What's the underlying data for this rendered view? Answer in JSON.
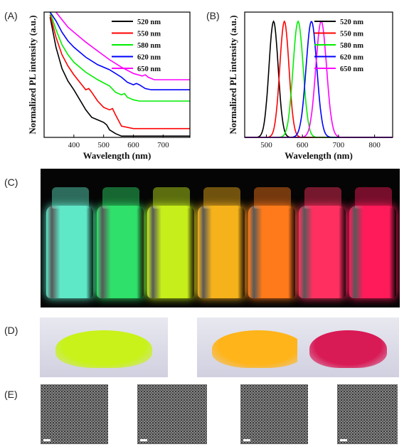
{
  "panels": {
    "a_label": "(A)",
    "b_label": "(B)",
    "c_label": "(C)",
    "d_label": "(D)",
    "e_label": "(E)"
  },
  "chart_data": [
    {
      "type": "line",
      "panel": "(A)",
      "xlabel": "Wavelength (nm)",
      "ylabel": "Normalized PL intensity (a.u.)",
      "xlim": [
        300,
        790
      ],
      "ylim": [
        0,
        1
      ],
      "xticks": [
        400,
        500,
        600,
        700
      ],
      "legend_position": "top-right",
      "series": [
        {
          "name": "520 nm",
          "color": "#000000",
          "x": [
            320,
            340,
            360,
            380,
            400,
            420,
            440,
            460,
            480,
            500,
            510,
            520,
            540,
            560,
            600,
            700,
            790
          ],
          "y": [
            0.96,
            0.72,
            0.55,
            0.45,
            0.38,
            0.3,
            0.22,
            0.16,
            0.14,
            0.12,
            0.1,
            0.06,
            0.03,
            0.01,
            0.01,
            0.01,
            0.01
          ]
        },
        {
          "name": "550 nm",
          "color": "#ff0000",
          "x": [
            320,
            340,
            360,
            380,
            400,
            420,
            440,
            450,
            460,
            480,
            500,
            520,
            530,
            540,
            560,
            600,
            700,
            790
          ],
          "y": [
            0.98,
            0.8,
            0.66,
            0.57,
            0.5,
            0.44,
            0.38,
            0.39,
            0.36,
            0.29,
            0.24,
            0.22,
            0.23,
            0.18,
            0.09,
            0.07,
            0.07,
            0.07
          ]
        },
        {
          "name": "580 nm",
          "color": "#00ee00",
          "x": [
            320,
            340,
            360,
            380,
            400,
            440,
            480,
            520,
            540,
            560,
            570,
            580,
            600,
            620,
            700,
            790
          ],
          "y": [
            1.0,
            0.86,
            0.74,
            0.66,
            0.6,
            0.52,
            0.46,
            0.41,
            0.36,
            0.34,
            0.35,
            0.32,
            0.3,
            0.29,
            0.29,
            0.29
          ]
        },
        {
          "name": "620 nm",
          "color": "#0000ff",
          "x": [
            320,
            340,
            360,
            380,
            400,
            440,
            480,
            520,
            560,
            580,
            600,
            610,
            620,
            640,
            660,
            700,
            790
          ],
          "y": [
            1.0,
            0.93,
            0.84,
            0.77,
            0.72,
            0.64,
            0.58,
            0.54,
            0.48,
            0.44,
            0.42,
            0.43,
            0.42,
            0.39,
            0.38,
            0.38,
            0.38
          ]
        },
        {
          "name": "650 nm",
          "color": "#ff00ff",
          "x": [
            340,
            360,
            380,
            400,
            440,
            480,
            520,
            560,
            600,
            630,
            640,
            650,
            670,
            700,
            790
          ],
          "y": [
            1.0,
            0.94,
            0.88,
            0.84,
            0.76,
            0.69,
            0.62,
            0.56,
            0.51,
            0.49,
            0.5,
            0.48,
            0.46,
            0.46,
            0.46
          ]
        }
      ]
    },
    {
      "type": "line",
      "panel": "(B)",
      "xlabel": "Wavelength (nm)",
      "ylabel": "Normalized PL intensity (a.u.)",
      "xlim": [
        440,
        850
      ],
      "ylim": [
        0,
        1.08
      ],
      "xticks": [
        500,
        600,
        700,
        800
      ],
      "legend_position": "top-right",
      "series": [
        {
          "name": "520 nm",
          "color": "#000000",
          "peak": 520,
          "fwhm": 30
        },
        {
          "name": "550 nm",
          "color": "#ff0000",
          "peak": 550,
          "fwhm": 30
        },
        {
          "name": "580 nm",
          "color": "#00ee00",
          "peak": 588,
          "fwhm": 33
        },
        {
          "name": "620 nm",
          "color": "#0000ff",
          "peak": 625,
          "fwhm": 35
        },
        {
          "name": "650 nm",
          "color": "#ff00ff",
          "peak": 652,
          "fwhm": 35
        }
      ]
    }
  ],
  "vials": [
    "#5fe8c8",
    "#2fe06a",
    "#c6ee1a",
    "#f5b21a",
    "#ff7a1a",
    "#ff3060",
    "#ff1a5a"
  ],
  "powders": [
    "#c8f21a",
    "#ffb41a",
    "#d81a55"
  ]
}
